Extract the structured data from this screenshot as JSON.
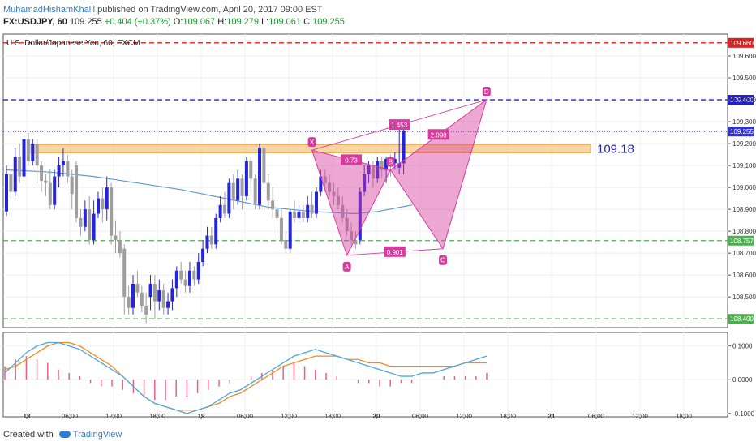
{
  "header": {
    "author": "MuhamadHishamKhalil",
    "published": "published on TradingView.com, April 20, 2017 09:00 EST",
    "symbol": "FX:USDJPY, 60",
    "price": "109.255",
    "change": "+0.404 (+0.37%)",
    "o_label": "O:",
    "o_value": "109.067",
    "h_label": "H:",
    "h_value": "109.279",
    "l_label": "L:",
    "l_value": "109.061",
    "c_label": "C:",
    "c_value": "109.255"
  },
  "chart_title": "U.S. Dollar/Japanese Yen, 60, FXCM",
  "footer": {
    "created_with": "Created with",
    "brand": "TradingView"
  },
  "colors": {
    "bull": "#2525d6",
    "bear": "#9e9e9e",
    "pattern": "#d63c9e",
    "red_line": "#e02020",
    "blue_line": "#2020d0",
    "green_line": "#4caf50",
    "zone": "#f5b968",
    "ma": "#5a9bd5",
    "signal": "#f08a24",
    "macd": "#4da6e0"
  },
  "chart_data": {
    "type": "candlestick",
    "ylim": [
      108.36,
      109.7
    ],
    "y_ticks": [
      109.6,
      109.5,
      109.4,
      109.3,
      109.2,
      109.1,
      109.0,
      108.9,
      108.8,
      108.7,
      108.6,
      108.5
    ],
    "y_tick_labels": [
      "109.600",
      "109.500",
      "109.400",
      "109.300",
      "109.200",
      "109.100",
      "109.000",
      "108.900",
      "108.800",
      "108.700",
      "108.600",
      "108.500"
    ],
    "x_tick_labels": [
      "18",
      "06:00",
      "12:00",
      "18:00",
      "19",
      "06:00",
      "12:00",
      "18:00",
      "20",
      "06:00",
      "12:00",
      "18:00",
      "21",
      "06:00",
      "12:00",
      "18:00"
    ],
    "candles": [
      [
        108.89,
        109.06,
        109.1,
        108.87
      ],
      [
        109.06,
        108.98,
        109.08,
        108.95
      ],
      [
        108.98,
        109.14,
        109.18,
        108.96
      ],
      [
        109.14,
        109.05,
        109.2,
        109.02
      ],
      [
        109.05,
        109.22,
        109.24,
        109.04
      ],
      [
        109.22,
        109.12,
        109.25,
        109.1
      ],
      [
        109.12,
        109.2,
        109.22,
        109.1
      ],
      [
        109.2,
        109.1,
        109.22,
        109.02
      ],
      [
        109.1,
        109.03,
        109.12,
        108.98
      ],
      [
        109.03,
        109.02,
        109.06,
        108.96
      ],
      [
        109.02,
        108.92,
        109.08,
        108.9
      ],
      [
        108.92,
        109.05,
        109.08,
        108.9
      ],
      [
        109.05,
        109.1,
        109.14,
        109.0
      ],
      [
        109.1,
        109.12,
        109.18,
        109.05
      ],
      [
        109.12,
        109.05,
        109.15,
        109.02
      ],
      [
        109.05,
        108.97,
        109.08,
        108.9
      ],
      [
        109.1,
        108.86,
        109.12,
        108.84
      ],
      [
        108.86,
        108.82,
        108.9,
        108.78
      ],
      [
        108.82,
        108.9,
        108.94,
        108.8
      ],
      [
        108.9,
        108.76,
        108.96,
        108.74
      ],
      [
        108.76,
        108.88,
        108.94,
        108.74
      ],
      [
        108.88,
        108.95,
        108.98,
        108.86
      ],
      [
        108.95,
        108.9,
        109.0,
        108.84
      ],
      [
        108.9,
        109.0,
        109.05,
        108.85
      ],
      [
        109.0,
        108.78,
        109.02,
        108.74
      ],
      [
        108.78,
        108.76,
        108.85,
        108.7
      ],
      [
        108.76,
        108.7,
        108.8,
        108.68
      ],
      [
        108.72,
        108.5,
        108.74,
        108.42
      ],
      [
        108.5,
        108.45,
        108.55,
        108.42
      ],
      [
        108.45,
        108.56,
        108.6,
        108.42
      ],
      [
        108.56,
        108.52,
        108.62,
        108.5
      ],
      [
        108.52,
        108.46,
        108.55,
        108.43
      ],
      [
        108.46,
        108.42,
        108.52,
        108.38
      ],
      [
        108.5,
        108.56,
        108.6,
        108.44
      ],
      [
        108.56,
        108.48,
        108.6,
        108.4
      ],
      [
        108.48,
        108.53,
        108.58,
        108.44
      ],
      [
        108.53,
        108.45,
        108.56,
        108.42
      ],
      [
        108.45,
        108.48,
        108.52,
        108.42
      ],
      [
        108.48,
        108.54,
        108.58,
        108.44
      ],
      [
        108.54,
        108.62,
        108.64,
        108.5
      ],
      [
        108.62,
        108.58,
        108.66,
        108.56
      ],
      [
        108.58,
        108.55,
        108.62,
        108.52
      ],
      [
        108.55,
        108.62,
        108.66,
        108.52
      ],
      [
        108.62,
        108.58,
        108.64,
        108.55
      ],
      [
        108.58,
        108.66,
        108.7,
        108.56
      ],
      [
        108.66,
        108.72,
        108.76,
        108.64
      ],
      [
        108.72,
        108.78,
        108.82,
        108.7
      ],
      [
        108.78,
        108.74,
        108.82,
        108.72
      ],
      [
        108.74,
        108.86,
        108.88,
        108.72
      ],
      [
        108.86,
        108.92,
        108.96,
        108.84
      ],
      [
        108.92,
        108.88,
        108.98,
        108.86
      ],
      [
        108.88,
        109.02,
        109.04,
        108.86
      ],
      [
        109.02,
        108.94,
        109.06,
        108.9
      ],
      [
        108.94,
        109.04,
        109.08,
        108.92
      ],
      [
        109.04,
        108.96,
        109.06,
        108.9
      ],
      [
        108.96,
        109.12,
        109.14,
        108.94
      ],
      [
        109.12,
        109.04,
        109.14,
        108.98
      ],
      [
        109.04,
        108.92,
        109.06,
        108.9
      ],
      [
        108.92,
        109.18,
        109.2,
        108.9
      ],
      [
        109.18,
        109.02,
        109.2,
        108.98
      ],
      [
        109.02,
        108.94,
        109.06,
        108.9
      ],
      [
        108.94,
        108.9,
        109.0,
        108.86
      ],
      [
        108.9,
        108.86,
        108.94,
        108.78
      ],
      [
        108.86,
        108.76,
        108.9,
        108.74
      ],
      [
        108.76,
        108.72,
        108.8,
        108.7
      ],
      [
        108.72,
        108.89,
        108.9,
        108.7
      ],
      [
        108.89,
        108.86,
        108.94,
        108.84
      ],
      [
        108.86,
        108.89,
        108.92,
        108.84
      ],
      [
        108.89,
        108.86,
        108.92,
        108.84
      ],
      [
        108.86,
        108.92,
        108.96,
        108.84
      ],
      [
        108.92,
        108.88,
        108.98,
        108.86
      ],
      [
        108.88,
        108.98,
        109.0,
        108.86
      ],
      [
        108.98,
        109.05,
        109.08,
        108.96
      ],
      [
        109.05,
        109.02,
        109.08,
        108.98
      ],
      [
        109.02,
        108.98,
        109.06,
        108.96
      ],
      [
        108.98,
        108.96,
        109.02,
        108.92
      ],
      [
        108.96,
        108.92,
        109.0,
        108.9
      ],
      [
        108.92,
        108.86,
        108.96,
        108.84
      ],
      [
        108.86,
        108.8,
        108.9,
        108.78
      ],
      [
        108.8,
        108.76,
        108.84,
        108.74
      ],
      [
        108.76,
        108.74,
        108.8,
        108.72
      ],
      [
        108.76,
        108.98,
        109.0,
        108.74
      ],
      [
        108.98,
        109.06,
        109.1,
        108.96
      ],
      [
        109.06,
        109.1,
        109.12,
        109.02
      ],
      [
        109.1,
        109.04,
        109.12,
        109.0
      ],
      [
        109.04,
        109.12,
        109.14,
        109.02
      ],
      [
        109.12,
        109.08,
        109.14,
        109.04
      ],
      [
        109.08,
        109.13,
        109.14,
        109.02
      ],
      [
        109.13,
        109.11,
        109.15,
        109.05
      ],
      [
        109.11,
        109.13,
        109.16,
        109.08
      ],
      [
        109.09,
        109.11,
        109.3,
        109.06
      ],
      [
        109.11,
        109.26,
        109.28,
        109.06
      ]
    ],
    "moving_average": [
      [
        0,
        109.08
      ],
      [
        10,
        109.07
      ],
      [
        20,
        109.05
      ],
      [
        30,
        109.02
      ],
      [
        40,
        108.99
      ],
      [
        50,
        108.95
      ],
      [
        60,
        108.91
      ],
      [
        70,
        108.89
      ],
      [
        80,
        108.88
      ],
      [
        85,
        108.89
      ],
      [
        93,
        108.92
      ]
    ],
    "levels": [
      {
        "price": 109.66,
        "label": "109.660",
        "style": "red-dashed"
      },
      {
        "price": 109.4,
        "label": "109.400",
        "style": "blue-dashed"
      },
      {
        "price": 109.255,
        "label": "109.255",
        "style": "current"
      },
      {
        "price": 108.757,
        "label": "108.757",
        "style": "green-dashed"
      },
      {
        "price": 108.4,
        "label": "108.400",
        "style": "green-dashed"
      }
    ],
    "zone": {
      "low": 109.15,
      "high": 109.18,
      "start_index": 5,
      "label": "109.18"
    },
    "pattern": {
      "points": [
        {
          "name": "X",
          "index": 70,
          "price": 109.17
        },
        {
          "name": "A",
          "index": 78,
          "price": 108.69
        },
        {
          "name": "B",
          "index": 88,
          "price": 109.08
        },
        {
          "name": "C",
          "index": 100,
          "price": 108.72
        },
        {
          "name": "D",
          "index": 110,
          "price": 109.4
        }
      ],
      "ratios": [
        {
          "text": "1.453",
          "from": "X",
          "to": "D"
        },
        {
          "text": "0.73",
          "from": "X",
          "to": "B"
        },
        {
          "text": "2.098",
          "from": "B",
          "to": "D"
        },
        {
          "text": "0.901",
          "from": "A",
          "to": "C"
        }
      ]
    },
    "oscillator": {
      "ylim": [
        -0.11,
        0.14
      ],
      "y_ticks": [
        0.1,
        0.0,
        -0.1
      ],
      "y_tick_labels": [
        "0.1000",
        "0.0000",
        "-0.1000"
      ],
      "macd": [
        0.02,
        0.05,
        0.08,
        0.1,
        0.11,
        0.11,
        0.1,
        0.09,
        0.07,
        0.05,
        0.03,
        0.01,
        -0.02,
        -0.05,
        -0.07,
        -0.08,
        -0.09,
        -0.1,
        -0.09,
        -0.08,
        -0.06,
        -0.04,
        -0.03,
        -0.01,
        0.01,
        0.03,
        0.05,
        0.07,
        0.08,
        0.09,
        0.08,
        0.07,
        0.06,
        0.05,
        0.04,
        0.03,
        0.02,
        0.01,
        0.01,
        0.02,
        0.02,
        0.03,
        0.04,
        0.05,
        0.06,
        0.07
      ],
      "signal": [
        0.03,
        0.04,
        0.06,
        0.08,
        0.1,
        0.11,
        0.11,
        0.1,
        0.08,
        0.06,
        0.04,
        0.01,
        -0.02,
        -0.05,
        -0.07,
        -0.08,
        -0.09,
        -0.09,
        -0.09,
        -0.08,
        -0.07,
        -0.05,
        -0.04,
        -0.02,
        0.0,
        0.02,
        0.04,
        0.05,
        0.06,
        0.07,
        0.07,
        0.07,
        0.06,
        0.06,
        0.05,
        0.05,
        0.04,
        0.04,
        0.04,
        0.04,
        0.04,
        0.04,
        0.04,
        0.05,
        0.05,
        0.05
      ],
      "histogram": [
        0.04,
        0.06,
        0.07,
        0.06,
        0.05,
        0.03,
        0.02,
        0.01,
        -0.01,
        -0.02,
        -0.02,
        -0.03,
        -0.04,
        -0.05,
        -0.06,
        -0.06,
        -0.05,
        -0.05,
        -0.04,
        -0.03,
        -0.02,
        -0.01,
        0.0,
        0.01,
        0.02,
        0.03,
        0.04,
        0.05,
        0.04,
        0.03,
        0.02,
        0.01,
        0.0,
        -0.01,
        -0.01,
        -0.02,
        -0.02,
        -0.01,
        -0.01,
        0.0,
        0.0,
        0.01,
        0.01,
        0.01,
        0.01,
        0.02
      ]
    }
  }
}
